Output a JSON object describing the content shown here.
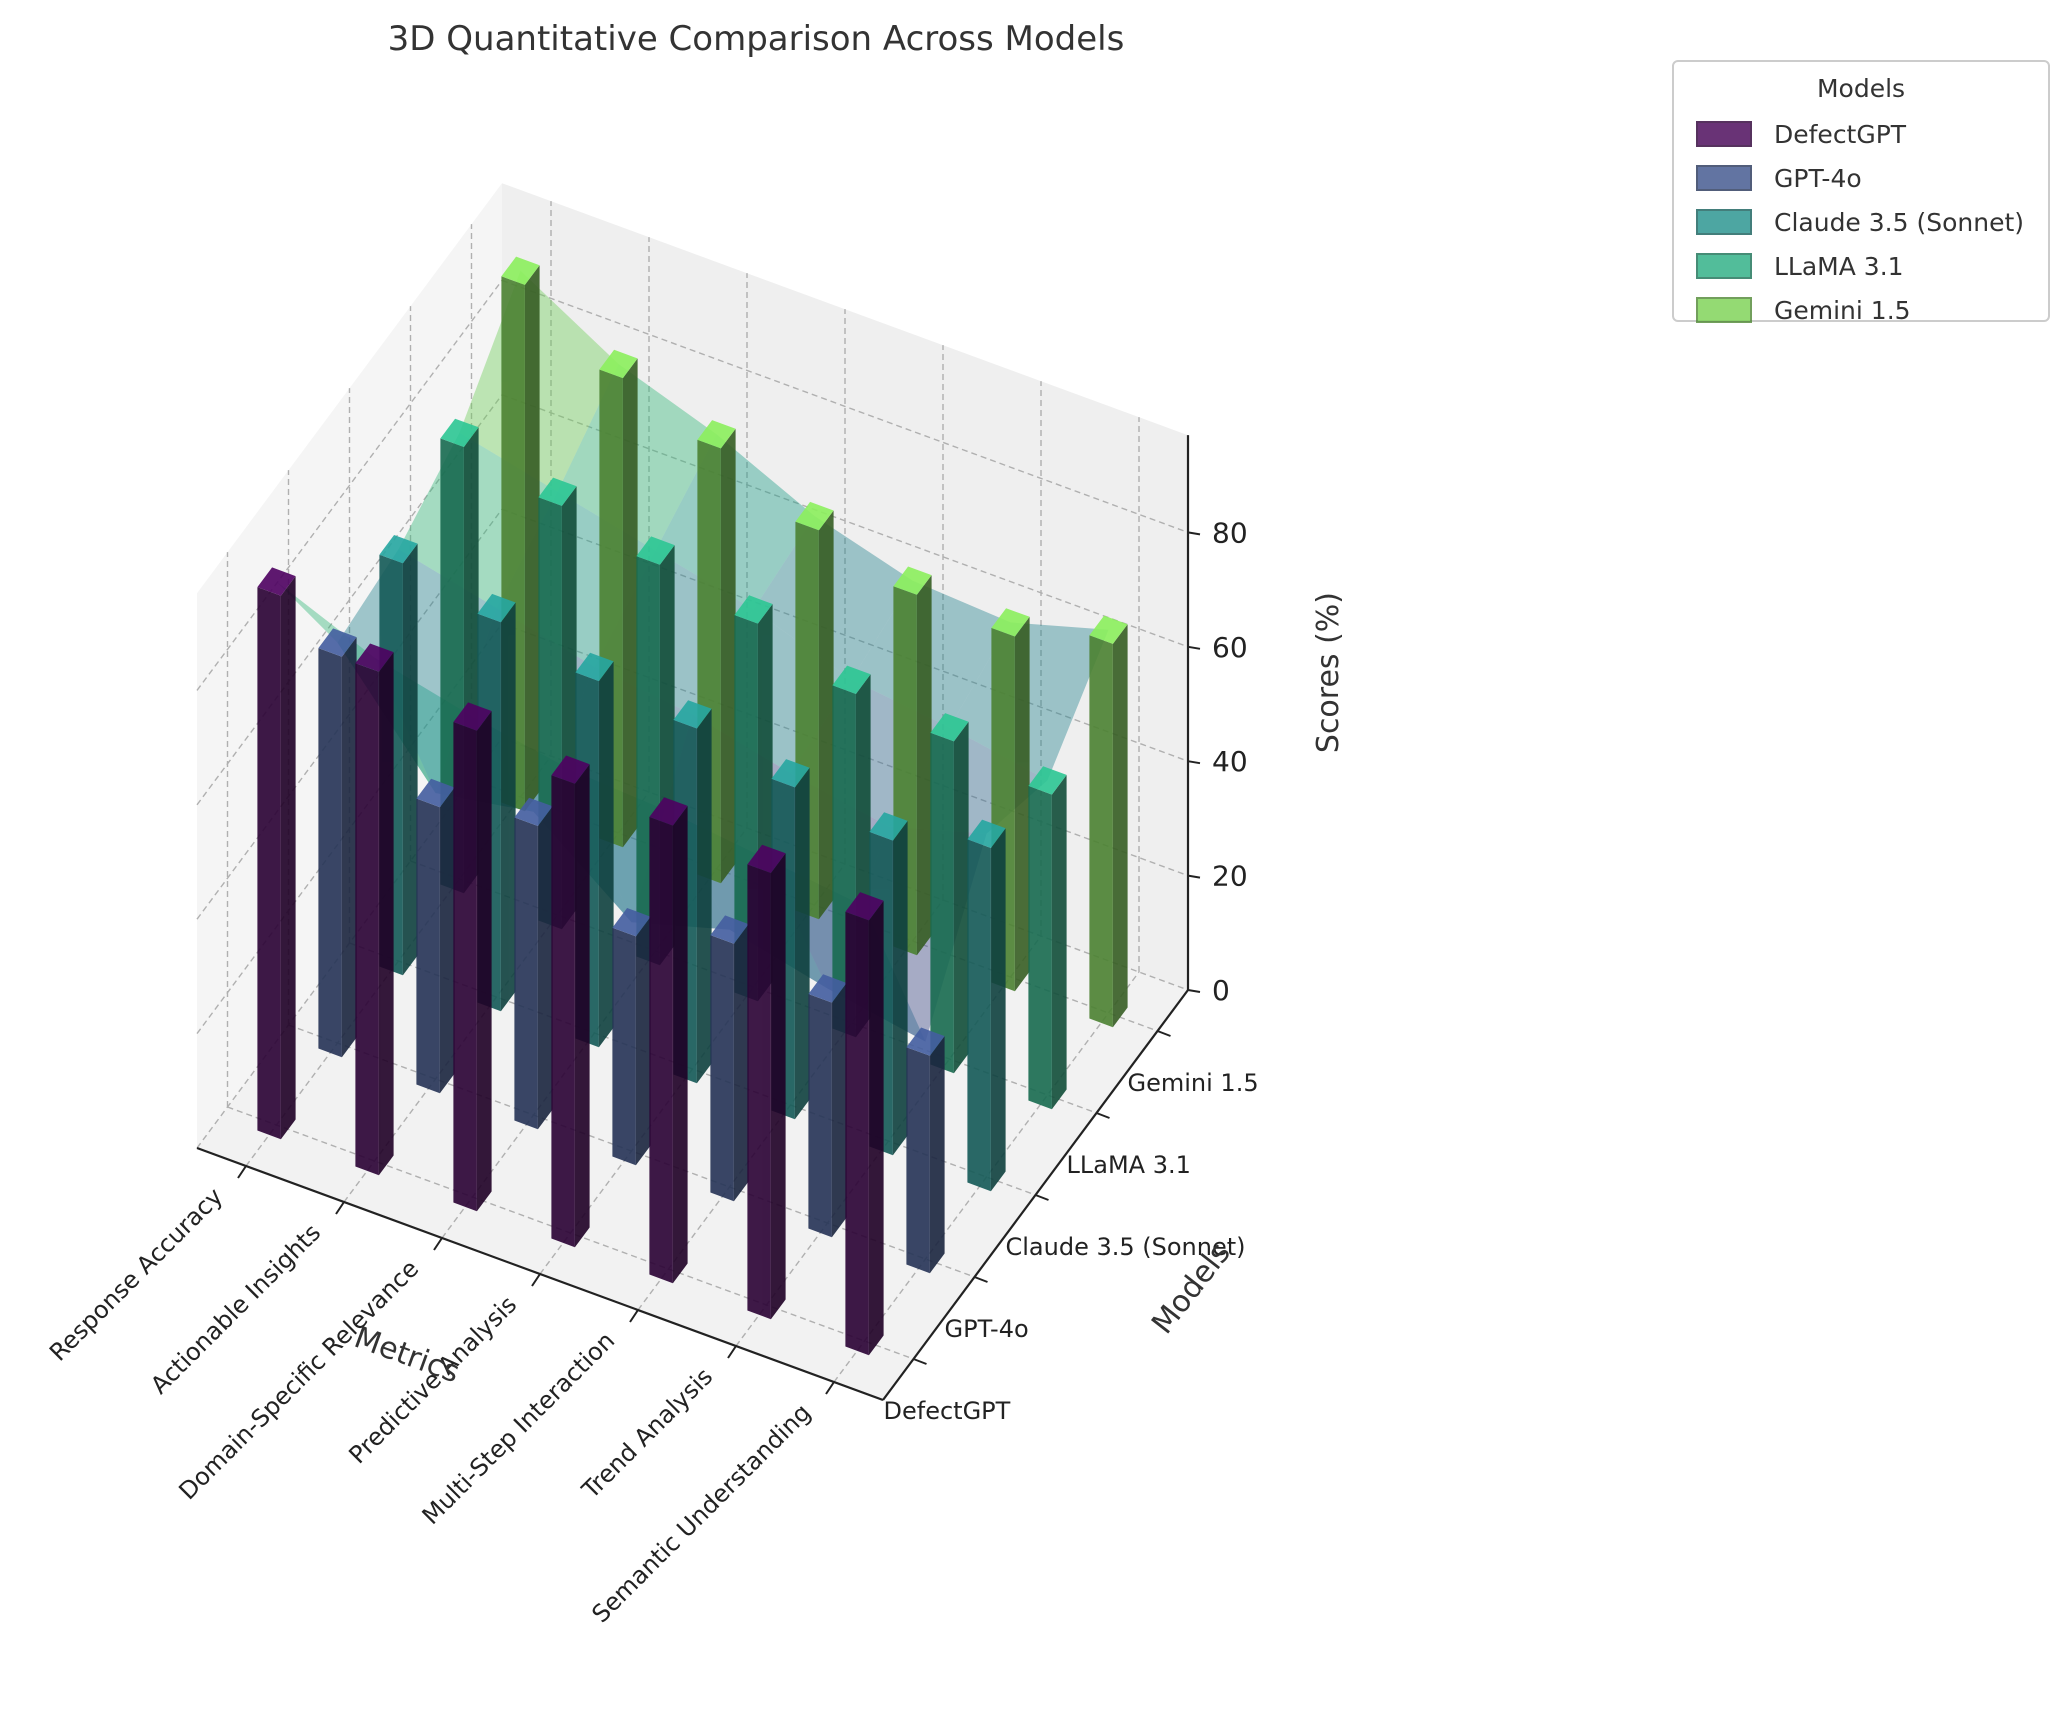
{
  "chart_data": {
    "type": "bar3d",
    "title": "3D Quantitative Comparison Across Models",
    "xlabel": "Metrics",
    "ylabel": "Models",
    "zlabel": "Scores (%)",
    "categories": [
      "Response Accuracy",
      "Actionable Insights",
      "Domain-Specific Relevance",
      "Predictive Analysis",
      "Multi-Step Interaction",
      "Trend Analysis",
      "Semantic Understanding"
    ],
    "models": [
      "DefectGPT",
      "GPT-4o",
      "Claude 3.5 (Sonnet)",
      "LLaMA 3.1",
      "Gemini 1.5"
    ],
    "zticks": [
      "0",
      "20",
      "40",
      "60",
      "80"
    ],
    "zlim": [
      0,
      97
    ],
    "series": [
      {
        "name": "DefectGPT",
        "color": "#440154",
        "values": [
          95,
          88,
          84,
          81,
          80,
          78,
          76
        ]
      },
      {
        "name": "GPT-4o",
        "color": "#3b528b",
        "values": [
          70,
          50,
          53,
          40,
          45,
          41,
          38
        ]
      },
      {
        "name": "Claude 3.5 (Sonnet)",
        "color": "#21918c",
        "values": [
          72,
          68,
          64,
          62,
          58,
          55,
          60
        ]
      },
      {
        "name": "LLaMA 3.1",
        "color": "#27ad81",
        "values": [
          78,
          74,
          70,
          66,
          60,
          58,
          55
        ]
      },
      {
        "name": "Gemini 1.5",
        "color": "#7ad151",
        "values": [
          92,
          82,
          76,
          68,
          63,
          62,
          67
        ]
      }
    ],
    "surface_colormap": "viridis",
    "grid": true,
    "legend": {
      "title": "Models",
      "position": "outside top-right"
    }
  }
}
